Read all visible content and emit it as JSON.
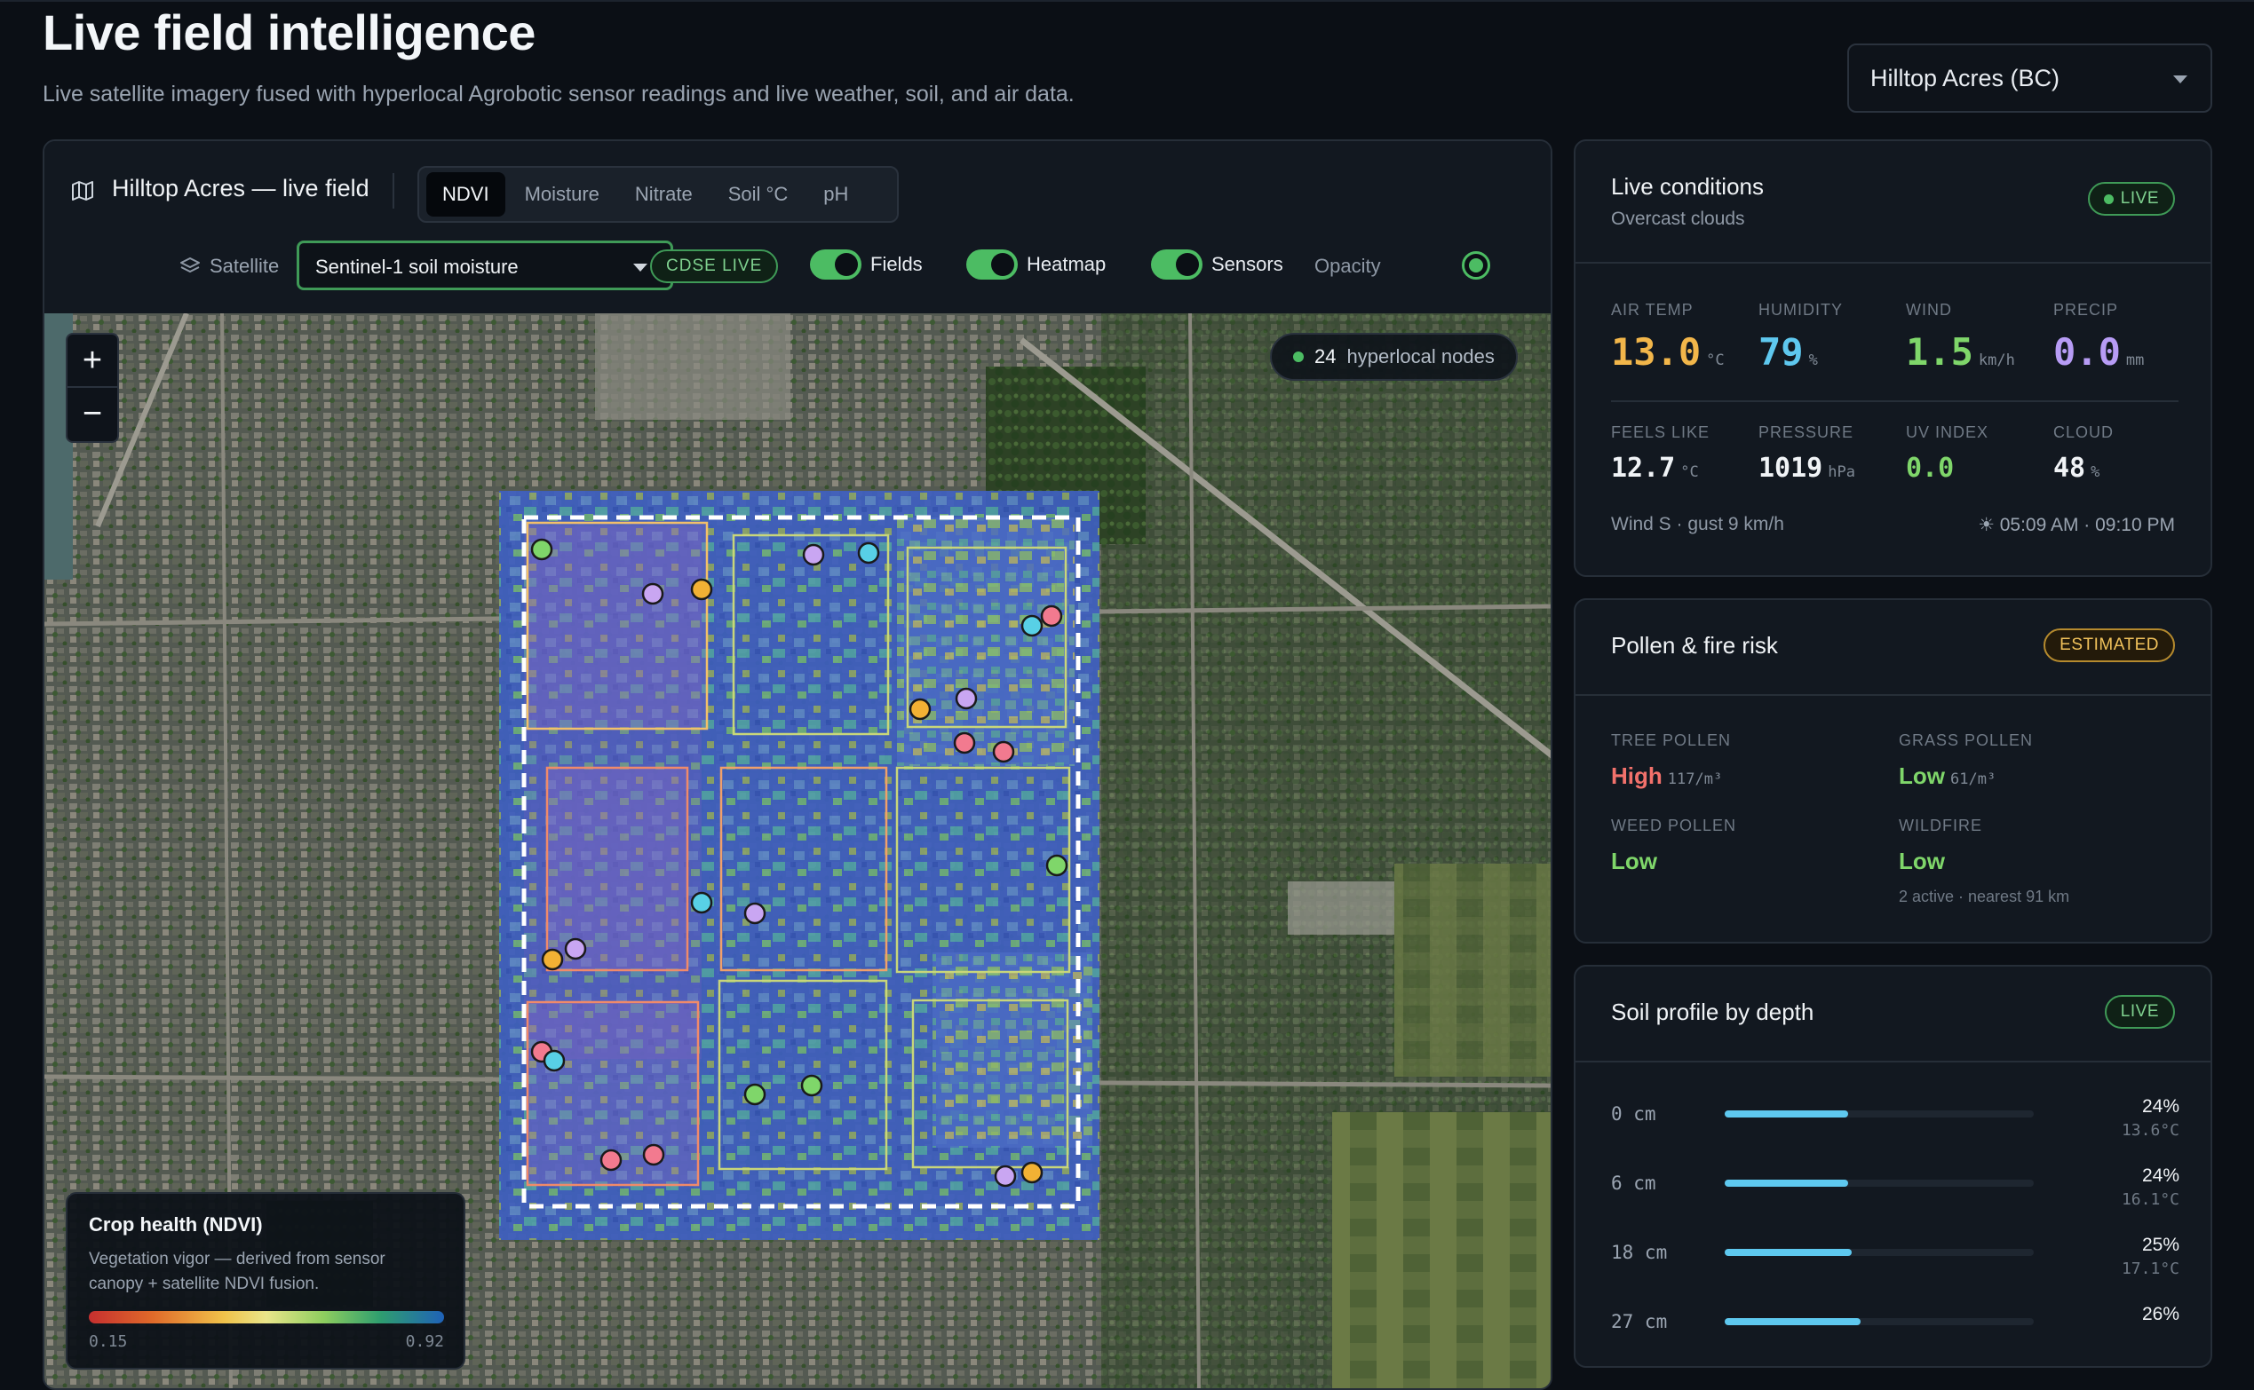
{
  "header": {
    "title": "Live field intelligence",
    "subtitle": "Live satellite imagery fused with hyperlocal Agrobotic sensor readings and live weather, soil, and air data.",
    "farm_select": "Hilltop Acres (BC)"
  },
  "map": {
    "title": "Hilltop Acres — live field",
    "tabs": [
      {
        "label": "NDVI",
        "active": true
      },
      {
        "label": "Moisture",
        "active": false
      },
      {
        "label": "Nitrate",
        "active": false
      },
      {
        "label": "Soil °C",
        "active": false
      },
      {
        "label": "pH",
        "active": false
      }
    ],
    "satellite_label": "Satellite",
    "source_select": "Sentinel-1 soil moisture",
    "cdse_badge": "CDSE LIVE",
    "toggles": [
      {
        "label": "Fields",
        "on": true
      },
      {
        "label": "Heatmap",
        "on": true
      },
      {
        "label": "Sensors",
        "on": true
      }
    ],
    "opacity_label": "Opacity",
    "zoom_in": "+",
    "zoom_out": "−",
    "nodes_count": "24",
    "nodes_label": "hyperlocal nodes",
    "legend": {
      "title": "Crop health (NDVI)",
      "description": "Vegetation vigor — derived from sensor canopy + satellite NDVI fusion.",
      "min": "0.15",
      "max": "0.92"
    },
    "sensor_colors": {
      "green": "#7fd66a",
      "violet": "#c9a6f2",
      "amber": "#f2b134",
      "cyan": "#58d0e6",
      "pink": "#f27a8f"
    }
  },
  "live_conditions": {
    "title": "Live conditions",
    "subtitle": "Overcast clouds",
    "badge": "LIVE",
    "stats_primary": [
      {
        "label": "AIR TEMP",
        "value": "13.0",
        "unit": "°C",
        "color": "#f2b64a"
      },
      {
        "label": "HUMIDITY",
        "value": "79",
        "unit": "%",
        "color": "#5ec8ef"
      },
      {
        "label": "WIND",
        "value": "1.5",
        "unit": "km/h",
        "color": "#7fd66a"
      },
      {
        "label": "PRECIP",
        "value": "0.0",
        "unit": "mm",
        "color": "#b79cf5"
      }
    ],
    "stats_secondary": [
      {
        "label": "FEELS LIKE",
        "value": "12.7",
        "unit": "°C",
        "color": "#f0f3f6"
      },
      {
        "label": "PRESSURE",
        "value": "1019",
        "unit": "hPa",
        "color": "#f0f3f6"
      },
      {
        "label": "UV INDEX",
        "value": "0.0",
        "unit": "",
        "color": "#7fd66a"
      },
      {
        "label": "CLOUD",
        "value": "48",
        "unit": "%",
        "color": "#f0f3f6"
      }
    ],
    "wind_note": "Wind S · gust 9 km/h",
    "sun_times": "☀ 05:09 AM · 09:10 PM"
  },
  "pollen": {
    "title": "Pollen & fire risk",
    "badge": "ESTIMATED",
    "items": [
      {
        "label": "TREE POLLEN",
        "value": "High",
        "unit": "117/m³",
        "color": "#f2716b",
        "note": ""
      },
      {
        "label": "GRASS POLLEN",
        "value": "Low",
        "unit": "61/m³",
        "color": "#7fd66a",
        "note": ""
      },
      {
        "label": "WEED POLLEN",
        "value": "Low",
        "unit": "",
        "color": "#7fd66a",
        "note": ""
      },
      {
        "label": "WILDFIRE",
        "value": "Low",
        "unit": "",
        "color": "#7fd66a",
        "note": "2 active · nearest 91 km"
      }
    ]
  },
  "soil": {
    "title": "Soil profile by depth",
    "badge": "LIVE",
    "rows": [
      {
        "depth": "0 cm",
        "pct": "24%",
        "fill": 0.4,
        "temp": "13.6°C"
      },
      {
        "depth": "6 cm",
        "pct": "24%",
        "fill": 0.4,
        "temp": "16.1°C"
      },
      {
        "depth": "18 cm",
        "pct": "25%",
        "fill": 0.41,
        "temp": "17.1°C"
      },
      {
        "depth": "27 cm",
        "pct": "26%",
        "fill": 0.44,
        "temp": ""
      }
    ]
  }
}
